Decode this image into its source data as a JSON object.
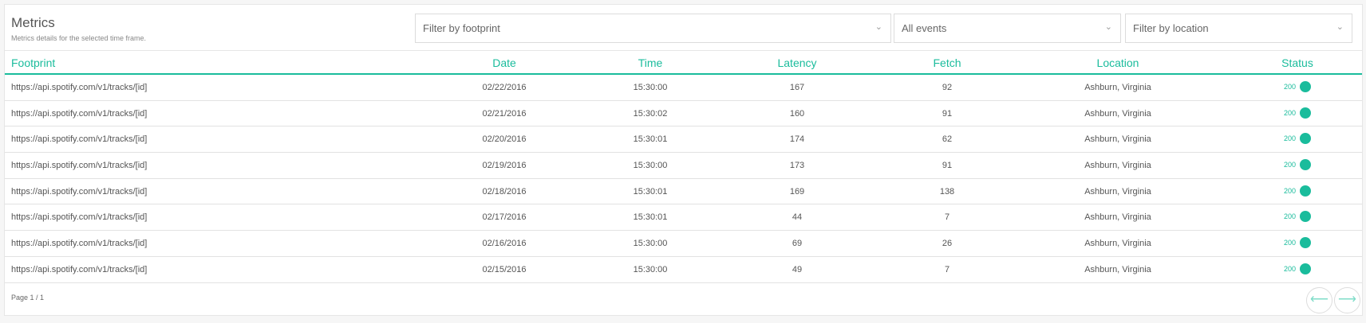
{
  "header": {
    "title": "Metrics",
    "subtitle": "Metrics details for the selected time frame."
  },
  "filters": {
    "footprint": "Filter by footprint",
    "events": "All events",
    "location": "Filter by location"
  },
  "columns": [
    "Footprint",
    "Date",
    "Time",
    "Latency",
    "Fetch",
    "Location",
    "Status"
  ],
  "rows": [
    [
      "https://api.spotify.com/v1/tracks/[id]",
      "02/22/2016",
      "15:30:00",
      "167",
      "92",
      "Ashburn, Virginia",
      "200"
    ],
    [
      "https://api.spotify.com/v1/tracks/[id]",
      "02/21/2016",
      "15:30:02",
      "160",
      "91",
      "Ashburn, Virginia",
      "200"
    ],
    [
      "https://api.spotify.com/v1/tracks/[id]",
      "02/20/2016",
      "15:30:01",
      "174",
      "62",
      "Ashburn, Virginia",
      "200"
    ],
    [
      "https://api.spotify.com/v1/tracks/[id]",
      "02/19/2016",
      "15:30:00",
      "173",
      "91",
      "Ashburn, Virginia",
      "200"
    ],
    [
      "https://api.spotify.com/v1/tracks/[id]",
      "02/18/2016",
      "15:30:01",
      "169",
      "138",
      "Ashburn, Virginia",
      "200"
    ],
    [
      "https://api.spotify.com/v1/tracks/[id]",
      "02/17/2016",
      "15:30:01",
      "44",
      "7",
      "Ashburn, Virginia",
      "200"
    ],
    [
      "https://api.spotify.com/v1/tracks/[id]",
      "02/16/2016",
      "15:30:00",
      "69",
      "26",
      "Ashburn, Virginia",
      "200"
    ],
    [
      "https://api.spotify.com/v1/tracks/[id]",
      "02/15/2016",
      "15:30:00",
      "49",
      "7",
      "Ashburn, Virginia",
      "200"
    ]
  ],
  "status_color": "#1abc9c",
  "pagination": {
    "label": "Page 1 / 1",
    "prev_icon": "arrow-left-icon",
    "next_icon": "arrow-right-icon"
  }
}
